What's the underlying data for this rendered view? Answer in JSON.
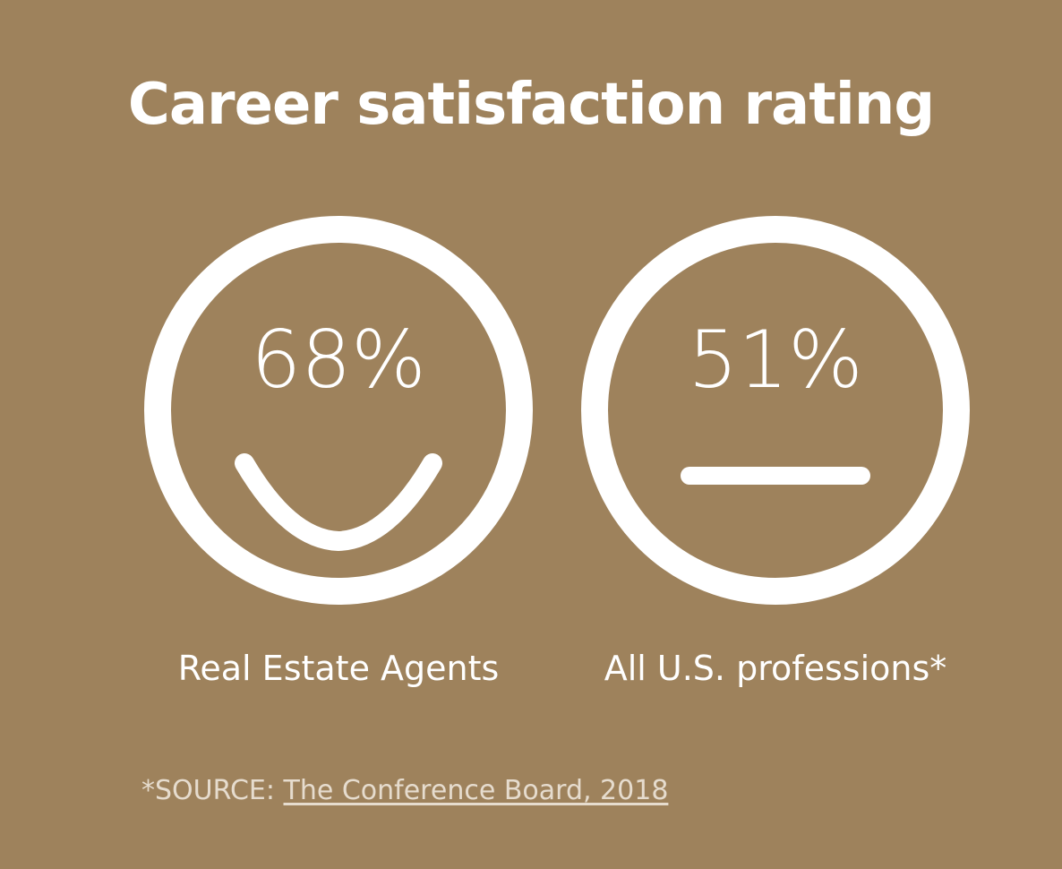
{
  "title": "Career satisfaction rating",
  "items": [
    {
      "value": "68%",
      "label": "Real Estate Agents",
      "face": "smile-icon"
    },
    {
      "value": "51%",
      "label": "All U.S. professions*",
      "face": "neutral-face-icon"
    }
  ],
  "source": {
    "prefix": "*SOURCE: ",
    "link_text": "The Conference Board, 2018"
  },
  "colors": {
    "background": "#9E825C",
    "foreground": "#FFFFFF",
    "source_text": "#E6DCCE"
  }
}
